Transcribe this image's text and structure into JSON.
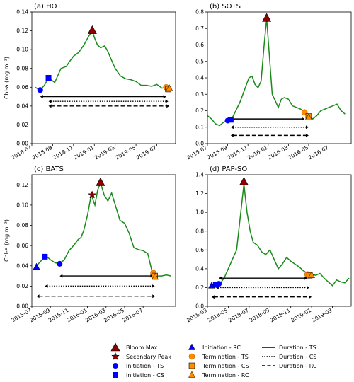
{
  "chart_data": [
    {
      "type": "line",
      "title": "(a) HOT",
      "ylabel": "Chl-a (mg m⁻³)",
      "ylim": [
        0,
        0.14
      ],
      "yticks": [
        0,
        0.02,
        0.04,
        0.06,
        0.08,
        0.1,
        0.12,
        0.14
      ],
      "ytick_labels": [
        "0.00",
        "0.02",
        "0.04",
        "0.06",
        "0.08",
        "0.10",
        "0.12",
        "0.14"
      ],
      "xlim": [
        0,
        13.8
      ],
      "xticks": [
        0,
        2,
        4,
        6,
        8,
        10,
        12
      ],
      "xtick_labels": [
        "2018-07",
        "2018-09",
        "2018-11",
        "2019-01",
        "2019-03",
        "2019-05",
        "2019-07"
      ],
      "series": [
        {
          "x": [
            0.3,
            0.8,
            1.2,
            1.6,
            2.2,
            2.8,
            3.3,
            3.6,
            4.0,
            4.5,
            5.0,
            5.5,
            5.8,
            6.0,
            6.3,
            6.6,
            7.0,
            7.3,
            7.6,
            8.0,
            8.5,
            9.0,
            9.5,
            10.0,
            10.5,
            11.0,
            11.5,
            12.0,
            12.5,
            13.0,
            13.4
          ],
          "y": [
            0.06,
            0.057,
            0.062,
            0.07,
            0.065,
            0.08,
            0.082,
            0.087,
            0.093,
            0.097,
            0.105,
            0.115,
            0.12,
            0.113,
            0.105,
            0.102,
            0.104,
            0.098,
            0.09,
            0.08,
            0.072,
            0.069,
            0.068,
            0.066,
            0.062,
            0.062,
            0.061,
            0.063,
            0.059,
            0.06,
            0.06
          ]
        }
      ],
      "markers": [
        {
          "type": "bloom_max",
          "x": 5.8,
          "y": 0.12
        },
        {
          "type": "initiation_ts",
          "x": 0.8,
          "y": 0.057
        },
        {
          "type": "initiation_cs",
          "x": 1.6,
          "y": 0.07
        },
        {
          "type": "termination_ts",
          "x": 12.9,
          "y": 0.06
        },
        {
          "type": "termination_cs",
          "x": 13.1,
          "y": 0.058
        },
        {
          "type": "termination_rc",
          "x": 13.2,
          "y": 0.059
        }
      ],
      "durations": [
        {
          "type": "ts",
          "start": 0.8,
          "end": 12.9,
          "y": 0.05
        },
        {
          "type": "cs",
          "start": 1.6,
          "end": 13.1,
          "y": 0.045
        },
        {
          "type": "rc",
          "start": 1.6,
          "end": 13.2,
          "y": 0.04
        }
      ]
    },
    {
      "type": "line",
      "title": "(b) SOTS",
      "ylabel": "",
      "ylim": [
        0,
        0.8
      ],
      "yticks": [
        0,
        0.1,
        0.2,
        0.3,
        0.4,
        0.5,
        0.6,
        0.7,
        0.8
      ],
      "ytick_labels": [
        "0.0",
        "0.1",
        "0.2",
        "0.3",
        "0.4",
        "0.5",
        "0.6",
        "0.7",
        "0.8"
      ],
      "xlim": [
        0,
        14.2
      ],
      "xticks": [
        0,
        2,
        4,
        6,
        8,
        10,
        12
      ],
      "xtick_labels": [
        "2015-07",
        "2015-09",
        "2015-11",
        "2016-01",
        "2016-03",
        "2016-05",
        "2016-07"
      ],
      "series": [
        {
          "x": [
            0,
            0.4,
            0.8,
            1.2,
            1.6,
            2.0,
            2.4,
            2.8,
            3.2,
            3.5,
            3.8,
            4.1,
            4.4,
            4.7,
            5.0,
            5.3,
            5.6,
            5.85,
            6.1,
            6.4,
            6.7,
            7.0,
            7.3,
            7.6,
            8.0,
            8.4,
            8.8,
            9.2,
            9.6,
            10.0,
            10.4,
            10.8,
            11.2,
            11.6,
            12.0,
            12.4,
            12.8,
            13.2,
            13.6
          ],
          "y": [
            0.17,
            0.15,
            0.12,
            0.11,
            0.13,
            0.14,
            0.15,
            0.2,
            0.25,
            0.3,
            0.35,
            0.4,
            0.41,
            0.36,
            0.34,
            0.38,
            0.6,
            0.76,
            0.55,
            0.3,
            0.26,
            0.22,
            0.27,
            0.28,
            0.27,
            0.23,
            0.22,
            0.21,
            0.19,
            0.17,
            0.15,
            0.17,
            0.2,
            0.21,
            0.22,
            0.23,
            0.24,
            0.2,
            0.18
          ]
        }
      ],
      "markers": [
        {
          "type": "bloom_max",
          "x": 5.85,
          "y": 0.76
        },
        {
          "type": "initiation_ts",
          "x": 2.0,
          "y": 0.14
        },
        {
          "type": "initiation_cs",
          "x": 2.3,
          "y": 0.145
        },
        {
          "type": "termination_ts",
          "x": 9.6,
          "y": 0.19
        },
        {
          "type": "termination_cs",
          "x": 10.0,
          "y": 0.165
        },
        {
          "type": "termination_rc",
          "x": 10.0,
          "y": 0.16
        }
      ],
      "durations": [
        {
          "type": "ts",
          "start": 2.0,
          "end": 9.6,
          "y": 0.15
        },
        {
          "type": "cs",
          "start": 2.3,
          "end": 10.0,
          "y": 0.1
        },
        {
          "type": "rc",
          "start": 2.3,
          "end": 10.0,
          "y": 0.05
        }
      ]
    },
    {
      "type": "line",
      "title": "(c) BATS",
      "ylabel": "Chl-a (mg m⁻³)",
      "ylim": [
        0,
        0.13
      ],
      "yticks": [
        0,
        0.02,
        0.04,
        0.06,
        0.08,
        0.1,
        0.12
      ],
      "ytick_labels": [
        "0.00",
        "0.02",
        "0.04",
        "0.06",
        "0.08",
        "0.10",
        "0.12"
      ],
      "xlim": [
        0,
        15.5
      ],
      "xticks": [
        0,
        2,
        4,
        6,
        8,
        10,
        12
      ],
      "xtick_labels": [
        "2015-07",
        "2015-09",
        "2015-11",
        "2016-01",
        "2016-03",
        "2016-05",
        "2016-07"
      ],
      "series": [
        {
          "x": [
            0.5,
            1.0,
            1.5,
            2.0,
            2.5,
            3.0,
            3.5,
            4.0,
            4.5,
            5.0,
            5.3,
            5.6,
            6.0,
            6.4,
            6.8,
            7.1,
            7.4,
            7.8,
            8.2,
            8.6,
            9.0,
            9.5,
            10.0,
            10.5,
            11.0,
            11.5,
            12.0,
            12.5,
            13.0,
            13.5,
            14.0,
            14.5,
            15.0
          ],
          "y": [
            0.04,
            0.045,
            0.05,
            0.046,
            0.043,
            0.042,
            0.046,
            0.055,
            0.06,
            0.066,
            0.068,
            0.075,
            0.09,
            0.11,
            0.1,
            0.115,
            0.122,
            0.11,
            0.104,
            0.112,
            0.1,
            0.085,
            0.082,
            0.072,
            0.058,
            0.056,
            0.055,
            0.052,
            0.033,
            0.03,
            0.03,
            0.031,
            0.03
          ]
        }
      ],
      "markers": [
        {
          "type": "bloom_max",
          "x": 7.4,
          "y": 0.122
        },
        {
          "type": "secondary_peak",
          "x": 6.5,
          "y": 0.11
        },
        {
          "type": "initiation_ts",
          "x": 3.0,
          "y": 0.042
        },
        {
          "type": "initiation_cs",
          "x": 1.4,
          "y": 0.049
        },
        {
          "type": "initiation_rc",
          "x": 0.5,
          "y": 0.039
        },
        {
          "type": "termination_ts",
          "x": 13.1,
          "y": 0.033
        },
        {
          "type": "termination_cs",
          "x": 13.25,
          "y": 0.03
        },
        {
          "type": "termination_rc",
          "x": 13.3,
          "y": 0.029
        }
      ],
      "durations": [
        {
          "type": "ts",
          "start": 3.0,
          "end": 13.1,
          "y": 0.03
        },
        {
          "type": "cs",
          "start": 1.4,
          "end": 13.25,
          "y": 0.02
        },
        {
          "type": "rc",
          "start": 0.5,
          "end": 13.3,
          "y": 0.01
        }
      ]
    },
    {
      "type": "line",
      "title": "(d) PAP-SO",
      "ylabel": "",
      "ylim": [
        0,
        1.4
      ],
      "yticks": [
        0,
        0.2,
        0.4,
        0.6,
        0.8,
        1.0,
        1.2,
        1.4
      ],
      "ytick_labels": [
        "0.0",
        "0.2",
        "0.4",
        "0.6",
        "0.8",
        "1.0",
        "1.2",
        "1.4"
      ],
      "xlim": [
        0,
        13.8
      ],
      "xticks": [
        0,
        2,
        4,
        6,
        8,
        10,
        12
      ],
      "xtick_labels": [
        "2018-03",
        "2018-05",
        "2018-07",
        "2018-09",
        "2018-11",
        "2019-01",
        "2019-03"
      ],
      "series": [
        {
          "x": [
            0.4,
            0.8,
            1.2,
            1.6,
            2.0,
            2.4,
            2.8,
            3.2,
            3.5,
            3.8,
            4.1,
            4.4,
            4.8,
            5.2,
            5.6,
            6.0,
            6.4,
            6.8,
            7.2,
            7.6,
            8.0,
            8.4,
            8.8,
            9.2,
            9.6,
            10.0,
            10.4,
            10.8,
            11.2,
            11.6,
            12.0,
            12.4,
            12.8,
            13.2,
            13.6
          ],
          "y": [
            0.22,
            0.23,
            0.24,
            0.3,
            0.4,
            0.5,
            0.6,
            1.0,
            1.3,
            1.0,
            0.8,
            0.68,
            0.65,
            0.58,
            0.55,
            0.6,
            0.5,
            0.4,
            0.45,
            0.52,
            0.48,
            0.45,
            0.42,
            0.38,
            0.35,
            0.34,
            0.33,
            0.35,
            0.3,
            0.26,
            0.22,
            0.28,
            0.26,
            0.25,
            0.3
          ]
        }
      ],
      "markers": [
        {
          "type": "bloom_max",
          "x": 3.5,
          "y": 1.32
        },
        {
          "type": "initiation_ts",
          "x": 1.1,
          "y": 0.24
        },
        {
          "type": "initiation_cs",
          "x": 0.8,
          "y": 0.23
        },
        {
          "type": "initiation_rc",
          "x": 0.4,
          "y": 0.22
        },
        {
          "type": "termination_ts",
          "x": 9.6,
          "y": 0.34
        },
        {
          "type": "termination_cs",
          "x": 9.8,
          "y": 0.33
        },
        {
          "type": "termination_rc",
          "x": 10.0,
          "y": 0.33
        }
      ],
      "durations": [
        {
          "type": "ts",
          "start": 1.1,
          "end": 9.6,
          "y": 0.3
        },
        {
          "type": "cs",
          "start": 0.8,
          "end": 9.8,
          "y": 0.2
        },
        {
          "type": "rc",
          "start": 0.4,
          "end": 10.0,
          "y": 0.1
        }
      ]
    }
  ],
  "legend": {
    "placement": "bottom",
    "items": [
      {
        "label": "Bloom Max",
        "marker": "triangle",
        "color": "#8b0000"
      },
      {
        "label": "Secondary Peak",
        "marker": "star",
        "color": "#8b0000"
      },
      {
        "label": "Initiation - TS",
        "marker": "circle",
        "color": "#0000ff"
      },
      {
        "label": "Initiation - CS",
        "marker": "square",
        "color": "#0000ff"
      },
      {
        "label": "Initiation - RC",
        "marker": "triangle",
        "color": "#0000ff"
      },
      {
        "label": "Termination - TS",
        "marker": "circle",
        "color": "#ff8c00"
      },
      {
        "label": "Termination - CS",
        "marker": "square",
        "color": "#ff8c00"
      },
      {
        "label": "Termination - RC",
        "marker": "triangle",
        "color": "#ff8c00"
      },
      {
        "label": "Duration - TS",
        "marker": "solid",
        "color": "#000000"
      },
      {
        "label": "Duration - CS",
        "marker": "dotted",
        "color": "#000000"
      },
      {
        "label": "Duration - RC",
        "marker": "dashed",
        "color": "#000000"
      }
    ]
  },
  "colors": {
    "line": "#1a8a1a",
    "bloom_max": "#8b0000",
    "initiation": "#0000ff",
    "termination": "#ff8c00",
    "duration": "#000000"
  }
}
